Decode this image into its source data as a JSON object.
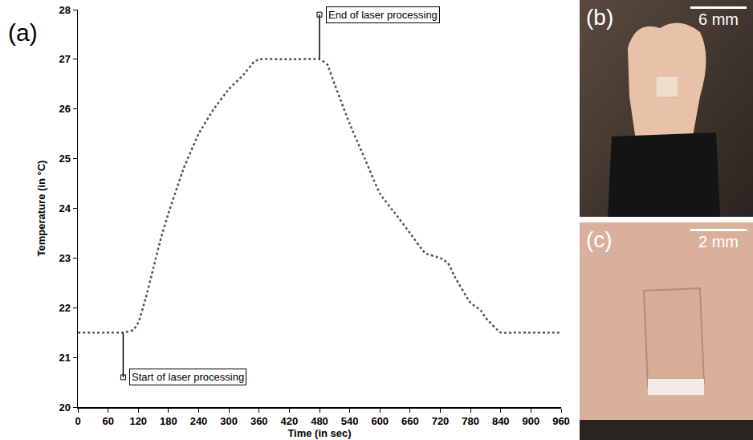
{
  "chart_data": {
    "type": "line",
    "x_label": "Time (in sec)",
    "y_label": "Temperature (in °C)",
    "x": [
      0,
      30,
      60,
      90,
      110,
      120,
      135,
      150,
      165,
      180,
      210,
      240,
      270,
      300,
      330,
      350,
      360,
      420,
      480,
      495,
      510,
      540,
      570,
      600,
      630,
      660,
      690,
      720,
      735,
      750,
      780,
      800,
      810,
      840,
      870,
      900,
      930,
      960
    ],
    "values": [
      21.5,
      21.5,
      21.5,
      21.5,
      21.55,
      21.7,
      22.2,
      22.8,
      23.4,
      23.9,
      24.8,
      25.5,
      26.0,
      26.4,
      26.7,
      26.95,
      27.0,
      27.0,
      27.0,
      26.9,
      26.5,
      25.7,
      25.0,
      24.3,
      23.9,
      23.5,
      23.1,
      23.0,
      22.9,
      22.6,
      22.1,
      21.95,
      21.8,
      21.5,
      21.5,
      21.5,
      21.5,
      21.5
    ],
    "color": "#555555",
    "line_style": "dotted",
    "xlim": [
      0,
      960
    ],
    "xticks": [
      0,
      60,
      120,
      180,
      240,
      300,
      360,
      420,
      480,
      540,
      600,
      660,
      720,
      780,
      840,
      900,
      960
    ],
    "ylim": [
      20,
      28
    ],
    "yticks": [
      20,
      21,
      22,
      23,
      24,
      25,
      26,
      27,
      28
    ],
    "grid": false,
    "annotations": [
      {
        "text": "(a)"
      },
      {
        "text": "Start of laser processing",
        "x": 90,
        "y": 20.6
      },
      {
        "text": "End of laser processing",
        "x": 480,
        "y": 27.9
      }
    ]
  },
  "panels": [
    {
      "label": "(b)",
      "scale_bar": "6 mm"
    },
    {
      "label": "(c)",
      "scale_bar": "2 mm"
    }
  ]
}
